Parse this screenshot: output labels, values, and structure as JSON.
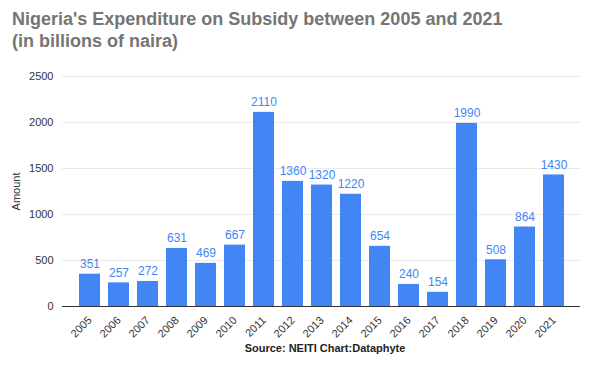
{
  "chart_data": {
    "type": "bar",
    "title": "Nigeria's Expenditure on Subsidy between 2005 and 2021",
    "subtitle": "(in billions of naira)",
    "y_label": "Amount",
    "caption": "Source: NEITI  Chart:Dataphyte",
    "categories": [
      "2005",
      "2006",
      "2007",
      "2008",
      "2009",
      "2010",
      "2011",
      "2012",
      "2013",
      "2014",
      "2015",
      "2016",
      "2017",
      "2018",
      "2019",
      "2020",
      "2021"
    ],
    "values": [
      351,
      257,
      272,
      631,
      469,
      667,
      2110,
      1360,
      1320,
      1220,
      654,
      240,
      154,
      1990,
      508,
      864,
      1430
    ],
    "color": "#4285f4",
    "ylim": [
      0,
      2500
    ],
    "yticks": [
      0,
      500,
      1000,
      1500,
      2000,
      2500
    ],
    "grid": true,
    "data_labels": true
  }
}
